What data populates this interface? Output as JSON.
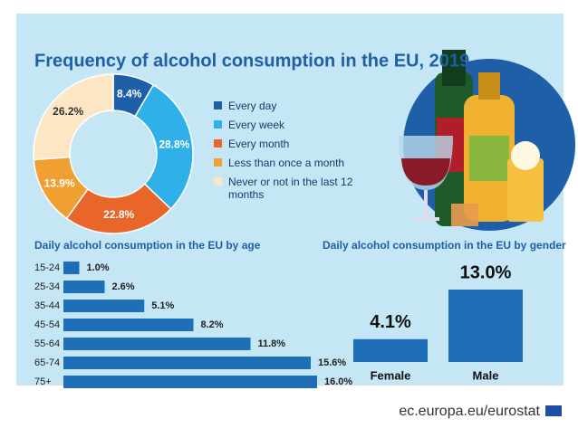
{
  "chart_data": [
    {
      "type": "pie",
      "title": "Frequency of alcohol consumption in the EU, 2019",
      "categories": [
        "Every day",
        "Every week",
        "Every month",
        "Less than once a month",
        "Never or not in the last 12 months"
      ],
      "values": [
        8.4,
        28.8,
        22.8,
        13.9,
        26.2
      ],
      "value_labels": [
        "8.4%",
        "28.8%",
        "22.8%",
        "13.9%",
        "26.2%"
      ],
      "colors": [
        "#1f5fa8",
        "#2fb0e8",
        "#e8662a",
        "#f0a030",
        "#fde6c4"
      ]
    },
    {
      "type": "hbar",
      "title": "Daily alcohol consumption in the EU by age",
      "categories": [
        "15-24",
        "25-34",
        "35-44",
        "45-54",
        "55-64",
        "65-74",
        "75+"
      ],
      "values": [
        1.0,
        2.6,
        5.1,
        8.2,
        11.8,
        15.6,
        16.0
      ],
      "value_labels": [
        "1.0%",
        "2.6%",
        "5.1%",
        "8.2%",
        "11.8%",
        "15.6%",
        "16.0%"
      ],
      "color": "#1f6fb8"
    },
    {
      "type": "bar",
      "title": "Daily alcohol consumption in the EU by gender",
      "categories": [
        "Female",
        "Male"
      ],
      "values": [
        4.1,
        13.0
      ],
      "value_labels": [
        "4.1%",
        "13.0%"
      ],
      "color": "#1f6fb8"
    }
  ],
  "source": "ec.europa.eu/eurostat"
}
